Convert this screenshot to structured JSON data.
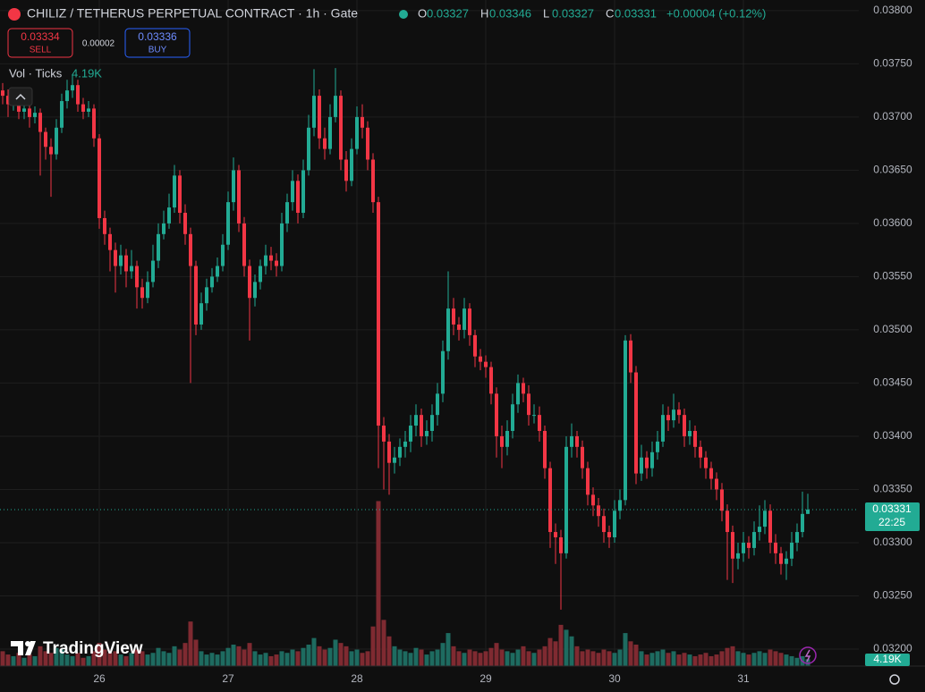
{
  "chart_data": {
    "type": "candlestick",
    "header": {
      "title": "CHILIZ / TETHERUS PERPETUAL CONTRACT · 1h · Gate",
      "ohlc": [
        {
          "label": "O",
          "value": "0.03327"
        },
        {
          "label": "H",
          "value": "0.03346"
        },
        {
          "label": "L",
          "value": "0.03327"
        },
        {
          "label": "C",
          "value": "0.03331"
        }
      ],
      "change": "+0.00004 (+0.12%)",
      "sell": {
        "price": "0.03334",
        "label": "SELL"
      },
      "spread": "0.00002",
      "buy": {
        "price": "0.03336",
        "label": "BUY"
      },
      "volume_label": "Vol · Ticks",
      "volume_value": "4.19K"
    },
    "watermark": "TradingView",
    "last_price": 0.03331,
    "countdown": "22:25",
    "volume_tag": "4.19K",
    "up_color": "#22ab94",
    "down_color": "#f23645",
    "volume_up_color": "#1e6b60",
    "volume_down_color": "#7f2a31",
    "grid": true,
    "ylim": [
      0.03184,
      0.0381
    ],
    "yticks": [
      {
        "value": 0.032,
        "label": "0.03200"
      },
      {
        "value": 0.0325,
        "label": "0.03250"
      },
      {
        "value": 0.033,
        "label": "0.03300"
      },
      {
        "value": 0.0335,
        "label": "0.03350"
      },
      {
        "value": 0.034,
        "label": "0.03400"
      },
      {
        "value": 0.0345,
        "label": "0.03450"
      },
      {
        "value": 0.035,
        "label": "0.03500"
      },
      {
        "value": 0.0355,
        "label": "0.03550"
      },
      {
        "value": 0.036,
        "label": "0.03600"
      },
      {
        "value": 0.0365,
        "label": "0.03650"
      },
      {
        "value": 0.037,
        "label": "0.03700"
      },
      {
        "value": 0.0375,
        "label": "0.03750"
      },
      {
        "value": 0.038,
        "label": "0.03800"
      }
    ],
    "volume_lim": [
      0,
      110000
    ],
    "categories": [
      null,
      null,
      null,
      null,
      null,
      null,
      null,
      null,
      null,
      null,
      null,
      null,
      null,
      null,
      null,
      null,
      null,
      null,
      "26",
      null,
      null,
      null,
      null,
      null,
      null,
      null,
      null,
      null,
      null,
      null,
      null,
      null,
      null,
      null,
      null,
      null,
      null,
      null,
      null,
      null,
      null,
      null,
      "27",
      null,
      null,
      null,
      null,
      null,
      null,
      null,
      null,
      null,
      null,
      null,
      null,
      null,
      null,
      null,
      null,
      null,
      null,
      null,
      null,
      null,
      null,
      null,
      "28",
      null,
      null,
      null,
      null,
      null,
      null,
      null,
      null,
      null,
      null,
      null,
      null,
      null,
      null,
      null,
      null,
      null,
      null,
      null,
      null,
      null,
      null,
      null,
      "29",
      null,
      null,
      null,
      null,
      null,
      null,
      null,
      null,
      null,
      null,
      null,
      null,
      null,
      null,
      null,
      null,
      null,
      null,
      null,
      null,
      null,
      null,
      null,
      "30",
      null,
      null,
      null,
      null,
      null,
      null,
      null,
      null,
      null,
      null,
      null,
      null,
      null,
      null,
      null,
      null,
      null,
      null,
      null,
      null,
      null,
      null,
      null,
      "31",
      null,
      null,
      null,
      null,
      null,
      null,
      null,
      null,
      null,
      null,
      null,
      null
    ],
    "open": [
      0.03725,
      0.0372,
      0.03712,
      0.03716,
      0.03705,
      0.03708,
      0.037,
      0.03704,
      0.03686,
      0.03672,
      0.03665,
      0.0369,
      0.03715,
      0.03725,
      0.0373,
      0.03712,
      0.03705,
      0.03708,
      0.0368,
      0.03605,
      0.0359,
      0.03575,
      0.0356,
      0.0357,
      0.03555,
      0.0356,
      0.0354,
      0.0353,
      0.03545,
      0.03565,
      0.0359,
      0.036,
      0.03615,
      0.03645,
      0.0361,
      0.0359,
      0.0356,
      0.03505,
      0.03525,
      0.0354,
      0.0355,
      0.0356,
      0.0358,
      0.0362,
      0.0365,
      0.036,
      0.0356,
      0.0353,
      0.03545,
      0.0356,
      0.0357,
      0.03565,
      0.0356,
      0.036,
      0.0362,
      0.0364,
      0.0361,
      0.0365,
      0.0369,
      0.0372,
      0.0368,
      0.0367,
      0.037,
      0.0372,
      0.0366,
      0.0364,
      0.0367,
      0.037,
      0.0369,
      0.0366,
      0.0362,
      0.0341,
      0.03395,
      0.03375,
      0.0338,
      0.0339,
      0.03395,
      0.0341,
      0.0342,
      0.034,
      0.03405,
      0.0342,
      0.0344,
      0.0348,
      0.0352,
      0.03505,
      0.035,
      0.0352,
      0.03495,
      0.03475,
      0.0347,
      0.03465,
      0.0344,
      0.034,
      0.0339,
      0.03405,
      0.0343,
      0.0345,
      0.0344,
      0.0342,
      0.0342,
      0.03405,
      0.0337,
      0.0331,
      0.03305,
      0.0329,
      0.0339,
      0.034,
      0.0339,
      0.0337,
      0.03345,
      0.03335,
      0.03325,
      0.0331,
      0.03305,
      0.0333,
      0.0334,
      0.0349,
      0.0346,
      0.03365,
      0.0338,
      0.0337,
      0.03385,
      0.03395,
      0.0342,
      0.03415,
      0.03425,
      0.0342,
      0.034,
      0.03405,
      0.0339,
      0.0338,
      0.0337,
      0.0336,
      0.0335,
      0.0333,
      0.0331,
      0.03285,
      0.0329,
      0.033,
      0.03295,
      0.0331,
      0.03315,
      0.0333,
      0.033,
      0.0329,
      0.0328,
      0.03285,
      0.033,
      0.0331,
      0.03327
    ],
    "high": [
      0.03732,
      0.03726,
      0.03722,
      0.0372,
      0.03714,
      0.03712,
      0.0371,
      0.03708,
      0.0369,
      0.0368,
      0.03698,
      0.03722,
      0.03735,
      0.0374,
      0.03735,
      0.03718,
      0.03715,
      0.03712,
      0.03684,
      0.03612,
      0.03596,
      0.03582,
      0.0358,
      0.03576,
      0.03575,
      0.03565,
      0.03548,
      0.03555,
      0.0358,
      0.036,
      0.03612,
      0.03628,
      0.03655,
      0.0365,
      0.03618,
      0.03596,
      0.03565,
      0.03535,
      0.03548,
      0.03558,
      0.03568,
      0.0359,
      0.0363,
      0.03662,
      0.03655,
      0.03606,
      0.03566,
      0.03552,
      0.03566,
      0.0358,
      0.03578,
      0.03572,
      0.0361,
      0.03628,
      0.0365,
      0.03646,
      0.0366,
      0.03702,
      0.03745,
      0.03726,
      0.0369,
      0.03712,
      0.03746,
      0.03725,
      0.03668,
      0.0368,
      0.0371,
      0.03712,
      0.03696,
      0.03666,
      0.03625,
      0.03418,
      0.03402,
      0.0339,
      0.03398,
      0.03405,
      0.0342,
      0.0343,
      0.03426,
      0.03415,
      0.0343,
      0.0345,
      0.0349,
      0.03555,
      0.0353,
      0.03512,
      0.0353,
      0.03525,
      0.035,
      0.03482,
      0.03476,
      0.0347,
      0.03446,
      0.0341,
      0.03415,
      0.0344,
      0.03458,
      0.03455,
      0.03448,
      0.0343,
      0.03428,
      0.0341,
      0.03376,
      0.03318,
      0.03312,
      0.034,
      0.03412,
      0.03405,
      0.03396,
      0.03376,
      0.03352,
      0.03342,
      0.03332,
      0.03316,
      0.0334,
      0.0335,
      0.03495,
      0.03496,
      0.03466,
      0.03392,
      0.03386,
      0.03395,
      0.03405,
      0.0343,
      0.03428,
      0.0344,
      0.03432,
      0.03426,
      0.03415,
      0.0341,
      0.03396,
      0.03386,
      0.03376,
      0.03366,
      0.03356,
      0.03336,
      0.03316,
      0.033,
      0.0331,
      0.03306,
      0.0332,
      0.03335,
      0.0334,
      0.03336,
      0.03308,
      0.03296,
      0.03292,
      0.0331,
      0.03318,
      0.03348,
      0.03346
    ],
    "low": [
      0.03712,
      0.037,
      0.03706,
      0.03698,
      0.03698,
      0.0369,
      0.03694,
      0.03645,
      0.0366,
      0.03625,
      0.0366,
      0.03685,
      0.03708,
      0.03718,
      0.03705,
      0.03698,
      0.037,
      0.03672,
      0.03595,
      0.0358,
      0.03555,
      0.03535,
      0.03552,
      0.0354,
      0.03548,
      0.0352,
      0.0352,
      0.03525,
      0.0354,
      0.03558,
      0.03585,
      0.03595,
      0.0361,
      0.036,
      0.0358,
      0.0345,
      0.03495,
      0.035,
      0.03518,
      0.03535,
      0.03545,
      0.03555,
      0.03575,
      0.03612,
      0.03592,
      0.0355,
      0.0349,
      0.03522,
      0.03538,
      0.03552,
      0.03556,
      0.0355,
      0.03555,
      0.03592,
      0.03612,
      0.036,
      0.03605,
      0.03645,
      0.03682,
      0.0367,
      0.0366,
      0.03665,
      0.03695,
      0.0365,
      0.0363,
      0.03635,
      0.03665,
      0.0368,
      0.0365,
      0.0361,
      0.0337,
      0.0335,
      0.03345,
      0.03365,
      0.03372,
      0.0338,
      0.03385,
      0.034,
      0.0339,
      0.03392,
      0.03395,
      0.0341,
      0.03432,
      0.03472,
      0.03495,
      0.0349,
      0.03492,
      0.03485,
      0.03465,
      0.03462,
      0.03455,
      0.0343,
      0.0338,
      0.0337,
      0.03382,
      0.03398,
      0.03422,
      0.03432,
      0.0341,
      0.03412,
      0.03395,
      0.0336,
      0.03295,
      0.0328,
      0.03237,
      0.03285,
      0.0338,
      0.0338,
      0.0336,
      0.03335,
      0.03325,
      0.03315,
      0.033,
      0.03295,
      0.033,
      0.03322,
      0.03335,
      0.0345,
      0.03355,
      0.03358,
      0.0336,
      0.03362,
      0.03378,
      0.0339,
      0.03405,
      0.03408,
      0.03412,
      0.0339,
      0.03392,
      0.0338,
      0.0337,
      0.0336,
      0.0335,
      0.0334,
      0.0332,
      0.03265,
      0.03262,
      0.03275,
      0.03282,
      0.03285,
      0.03288,
      0.03302,
      0.03308,
      0.0329,
      0.0328,
      0.0327,
      0.03265,
      0.03278,
      0.03292,
      0.03305,
      0.03327
    ],
    "close": [
      0.0372,
      0.03712,
      0.03716,
      0.03705,
      0.03708,
      0.037,
      0.03704,
      0.03686,
      0.03672,
      0.03665,
      0.0369,
      0.03715,
      0.03725,
      0.0373,
      0.03712,
      0.03705,
      0.03708,
      0.0368,
      0.03605,
      0.0359,
      0.03575,
      0.0356,
      0.0357,
      0.03555,
      0.0356,
      0.0354,
      0.0353,
      0.03545,
      0.03565,
      0.0359,
      0.036,
      0.03615,
      0.03645,
      0.0361,
      0.0359,
      0.0356,
      0.03505,
      0.03525,
      0.0354,
      0.0355,
      0.0356,
      0.0358,
      0.0362,
      0.0365,
      0.036,
      0.0356,
      0.0353,
      0.03545,
      0.0356,
      0.0357,
      0.03565,
      0.0356,
      0.036,
      0.0362,
      0.0364,
      0.0361,
      0.0365,
      0.0369,
      0.0372,
      0.0368,
      0.0367,
      0.037,
      0.0372,
      0.0366,
      0.0364,
      0.0367,
      0.037,
      0.0369,
      0.0366,
      0.0362,
      0.0341,
      0.03395,
      0.03375,
      0.0338,
      0.0339,
      0.03395,
      0.0341,
      0.0342,
      0.034,
      0.03405,
      0.0342,
      0.0344,
      0.0348,
      0.0352,
      0.03505,
      0.035,
      0.0352,
      0.03495,
      0.03475,
      0.0347,
      0.03465,
      0.0344,
      0.034,
      0.0339,
      0.03405,
      0.0343,
      0.0345,
      0.0344,
      0.0342,
      0.0342,
      0.03405,
      0.0337,
      0.0331,
      0.03305,
      0.0329,
      0.0339,
      0.034,
      0.0339,
      0.0337,
      0.03345,
      0.03335,
      0.03325,
      0.0331,
      0.03305,
      0.0333,
      0.0334,
      0.0349,
      0.0346,
      0.03365,
      0.0338,
      0.0337,
      0.03385,
      0.03395,
      0.0342,
      0.03415,
      0.03425,
      0.0342,
      0.034,
      0.03405,
      0.0339,
      0.0338,
      0.0337,
      0.0336,
      0.0335,
      0.0333,
      0.0331,
      0.03285,
      0.0329,
      0.033,
      0.03295,
      0.0331,
      0.03315,
      0.0333,
      0.033,
      0.0329,
      0.0328,
      0.03285,
      0.033,
      0.0331,
      0.03327,
      0.03331
    ],
    "volume": [
      9000,
      7000,
      6000,
      8000,
      5000,
      7000,
      6000,
      12000,
      9000,
      8000,
      11000,
      10000,
      7000,
      6000,
      8000,
      5000,
      6000,
      9000,
      14000,
      10000,
      8000,
      9000,
      7000,
      6000,
      8000,
      10000,
      9000,
      7000,
      8000,
      11000,
      9000,
      8000,
      12000,
      10000,
      14000,
      27000,
      16000,
      9000,
      7000,
      8000,
      7000,
      9000,
      11000,
      13000,
      12000,
      10000,
      14000,
      9000,
      7000,
      8000,
      6000,
      7000,
      9000,
      8000,
      10000,
      9000,
      11000,
      13000,
      17000,
      12000,
      10000,
      11000,
      16000,
      14000,
      12000,
      9000,
      10000,
      8000,
      9000,
      24000,
      100000,
      28000,
      18000,
      12000,
      10000,
      9000,
      8000,
      11000,
      10000,
      7000,
      9000,
      10000,
      14000,
      20000,
      12000,
      9000,
      8000,
      10000,
      9000,
      8000,
      9000,
      11000,
      14000,
      10000,
      9000,
      8000,
      10000,
      12000,
      9000,
      8000,
      10000,
      12000,
      17000,
      15000,
      25000,
      22000,
      18000,
      12000,
      9000,
      10000,
      9000,
      8000,
      10000,
      9000,
      8000,
      10000,
      20000,
      15000,
      13000,
      9000,
      7000,
      8000,
      9000,
      10000,
      8000,
      9000,
      7000,
      8000,
      7000,
      6000,
      7000,
      8000,
      6000,
      7000,
      9000,
      11000,
      12000,
      9000,
      8000,
      7000,
      8000,
      9000,
      8000,
      10000,
      9000,
      8000,
      7000,
      6000,
      5000,
      6000,
      4190
    ]
  }
}
